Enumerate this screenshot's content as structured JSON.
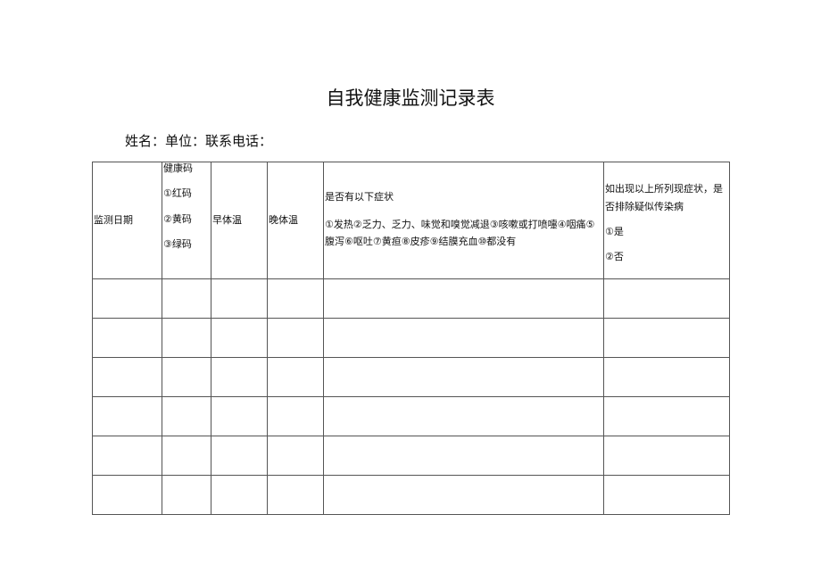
{
  "title": "自我健康监测记录表",
  "subtitle": "姓名：单位：联系电话：",
  "headers": {
    "date": "监测日期",
    "code_title": "健康码",
    "code_red": "①红码",
    "code_yellow": "②黄码",
    "code_green": "③绿码",
    "morning_temp": "早体温",
    "evening_temp": "晚体温",
    "symptoms_title": "是否有以下症状",
    "symptoms_list": "①发热②乏力、乏力、味觉和嗅觉减退③咳嗽或打喷嚏④咽痛⑤腹泻⑥呕吐⑦黄疸⑧皮疹⑨结膜充血⑩都没有",
    "exclude_title": "如出现以上所列现症状，是否排除疑似传染病",
    "exclude_yes": "①是",
    "exclude_no": "②否"
  }
}
